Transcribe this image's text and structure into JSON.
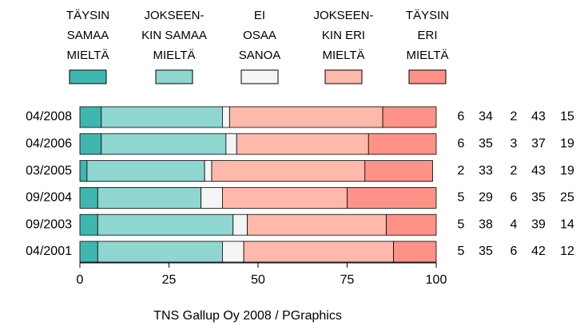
{
  "chart_data": {
    "type": "stacked_bar_horizontal",
    "categories": [
      "04/2008",
      "04/2006",
      "03/2005",
      "09/2004",
      "09/2003",
      "04/2001"
    ],
    "series": [
      {
        "name": [
          "TÄYSIN",
          "SAMAA",
          "MIELTÄ"
        ],
        "color": "#3fb7ae",
        "values": [
          6,
          6,
          2,
          5,
          5,
          5
        ]
      },
      {
        "name": [
          "JOKSEEN-",
          "KIN SAMAA",
          "MIELTÄ"
        ],
        "color": "#8fd6d0",
        "values": [
          34,
          35,
          33,
          29,
          38,
          35
        ]
      },
      {
        "name": [
          "EI",
          "OSAA",
          "SANOA"
        ],
        "color": "#f5f5f5",
        "values": [
          2,
          3,
          2,
          6,
          4,
          6
        ]
      },
      {
        "name": [
          "JOKSEEN-",
          "KIN ERI",
          "MIELTÄ"
        ],
        "color": "#ffb9ab",
        "values": [
          43,
          37,
          43,
          35,
          39,
          42
        ]
      },
      {
        "name": [
          "TÄYSIN",
          "ERI",
          "MIELTÄ"
        ],
        "color": "#ff9286",
        "values": [
          15,
          19,
          19,
          25,
          14,
          12
        ]
      }
    ],
    "xlim": [
      0,
      100
    ],
    "xticks": [
      0,
      25,
      50,
      75,
      100
    ],
    "caption": "TNS Gallup Oy 2008 / PGraphics"
  }
}
